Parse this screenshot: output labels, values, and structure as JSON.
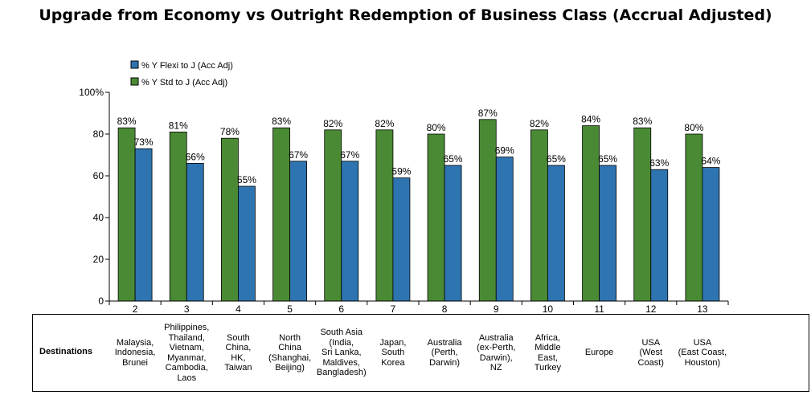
{
  "chart_data": {
    "type": "bar",
    "title": "Upgrade from Economy vs Outright Redemption of Business Class (Accrual Adjusted)",
    "categories": [
      "2",
      "3",
      "4",
      "5",
      "6",
      "7",
      "8",
      "9",
      "10",
      "11",
      "12",
      "13"
    ],
    "series": [
      {
        "name": "% Y Std to J (Acc Adj)",
        "color": "#4a8a34",
        "values": [
          83,
          81,
          78,
          83,
          82,
          82,
          80,
          87,
          82,
          84,
          83,
          80
        ]
      },
      {
        "name": "% Y Flexi to J (Acc Adj)",
        "color": "#2e74b0",
        "values": [
          73,
          66,
          55,
          67,
          67,
          59,
          65,
          69,
          65,
          65,
          63,
          64
        ]
      }
    ],
    "ylim": [
      0,
      100
    ],
    "yticks": [
      "0",
      "20",
      "40",
      "60",
      "80",
      "100%"
    ],
    "legend_order": [
      "% Y Flexi to J (Acc Adj)",
      "% Y Std to J (Acc Adj)"
    ],
    "legend_position": "top-left",
    "data_label_suffix": "%"
  },
  "destinations": {
    "header": "Destinations",
    "items": [
      "Malaysia,\nIndonesia,\nBrunei",
      "Philippines,\nThailand,\nVietnam,\nMyanmar,\nCambodia,\nLaos",
      "South\nChina,\nHK,\nTaiwan",
      "North\nChina\n(Shanghai,\nBeijing)",
      "South Asia\n(India,\nSri Lanka,\nMaldives,\nBangladesh)",
      "Japan,\nSouth\nKorea",
      "Australia\n(Perth,\nDarwin)",
      "Australia\n(ex-Perth,\nDarwin),\nNZ",
      "Africa,\nMiddle\nEast,\nTurkey",
      "Europe",
      "USA\n(West\nCoast)",
      "USA\n(East Coast,\nHouston)"
    ]
  }
}
